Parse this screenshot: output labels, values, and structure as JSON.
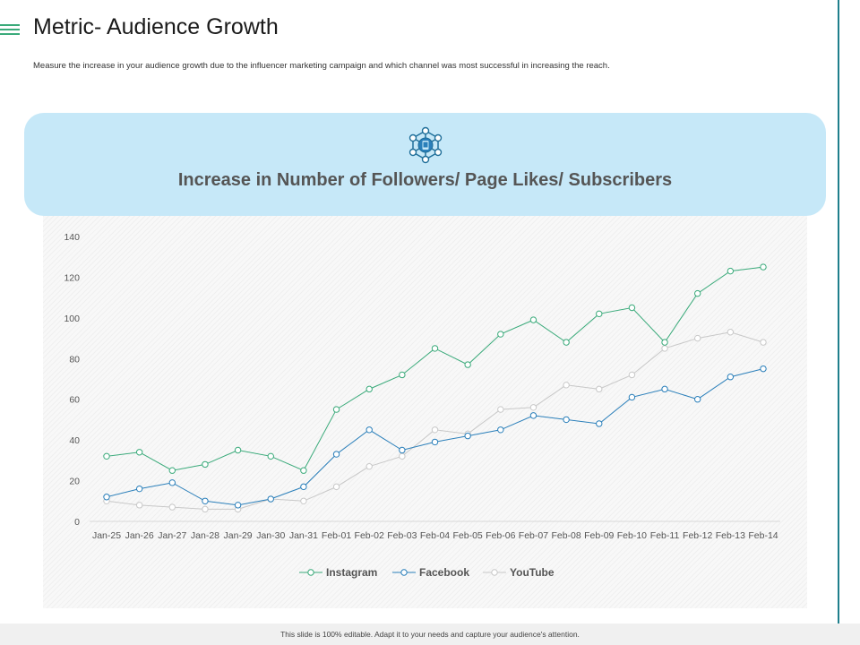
{
  "header": {
    "title": "Metric- Audience Growth",
    "subtitle": "Measure the increase in your audience growth due to the influencer marketing campaign and which channel was most successful in increasing the reach."
  },
  "banner": {
    "title": "Increase in Number of Followers/ Page Likes/ Subscribers",
    "icon": "social-network-icon"
  },
  "footer": {
    "text": "This slide is 100% editable. Adapt it to your needs and capture your audience's attention."
  },
  "colors": {
    "accent": "#1f7f8c",
    "banner": "#c6e8f8",
    "instagram": "#3aaa7a",
    "facebook": "#2a7fba",
    "youtube": "#c8c8c8"
  },
  "chart_data": {
    "type": "line",
    "title": "Increase in Number of Followers/ Page Likes/ Subscribers",
    "xlabel": "",
    "ylabel": "",
    "ylim": [
      0,
      140
    ],
    "yticks": [
      0,
      20,
      40,
      60,
      80,
      100,
      120,
      140
    ],
    "categories": [
      "Jan-25",
      "Jan-26",
      "Jan-27",
      "Jan-28",
      "Jan-29",
      "Jan-30",
      "Jan-31",
      "Feb-01",
      "Feb-02",
      "Feb-03",
      "Feb-04",
      "Feb-05",
      "Feb-06",
      "Feb-07",
      "Feb-08",
      "Feb-09",
      "Feb-10",
      "Feb-11",
      "Feb-12",
      "Feb-13",
      "Feb-14"
    ],
    "legend_position": "bottom",
    "grid": false,
    "series": [
      {
        "name": "Instagram",
        "color": "#3aaa7a",
        "values": [
          32,
          34,
          25,
          28,
          35,
          32,
          25,
          55,
          65,
          72,
          85,
          77,
          92,
          99,
          88,
          102,
          105,
          88,
          112,
          123,
          125
        ]
      },
      {
        "name": "Facebook",
        "color": "#2a7fba",
        "values": [
          12,
          16,
          19,
          10,
          8,
          11,
          17,
          33,
          45,
          35,
          39,
          42,
          45,
          52,
          50,
          48,
          61,
          65,
          60,
          71,
          75
        ]
      },
      {
        "name": "YouTube",
        "color": "#c8c8c8",
        "values": [
          10,
          8,
          7,
          6,
          6,
          11,
          10,
          17,
          27,
          32,
          45,
          43,
          55,
          56,
          67,
          65,
          72,
          85,
          90,
          93,
          88
        ]
      }
    ]
  }
}
